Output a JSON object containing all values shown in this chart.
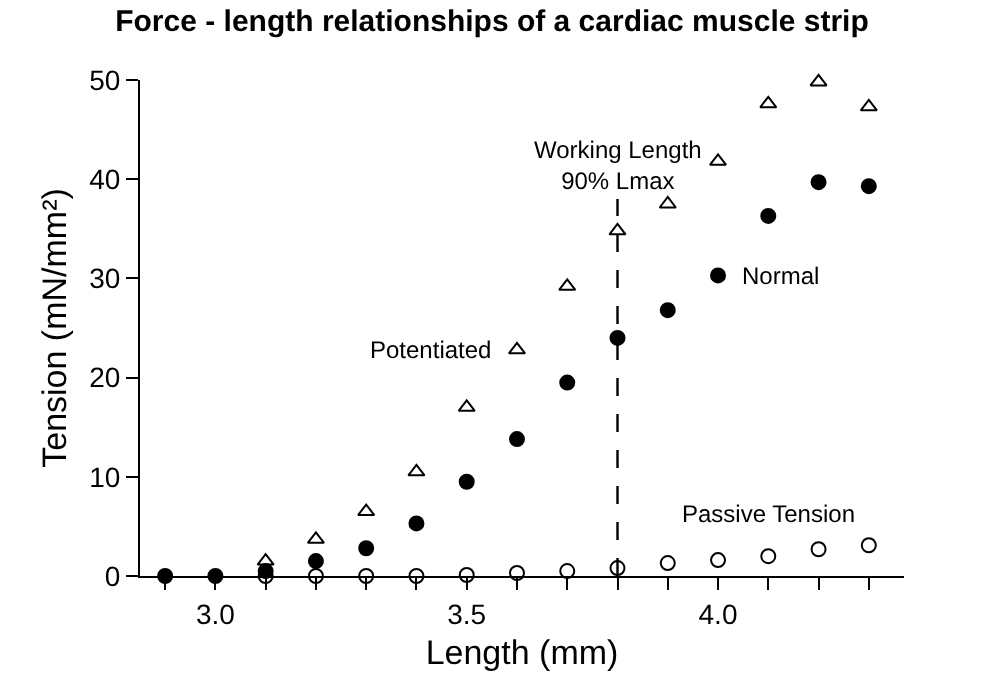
{
  "chart_data": {
    "type": "scatter",
    "title": "Force - length relationships of a cardiac muscle strip",
    "xlabel": "Length (mm)",
    "ylabel": "Tension (mN/mm²)",
    "x": [
      2.9,
      3.0,
      3.1,
      3.2,
      3.3,
      3.4,
      3.5,
      3.6,
      3.7,
      3.8,
      3.9,
      4.0,
      4.1,
      4.2,
      4.3
    ],
    "series": [
      {
        "name": "Normal",
        "color": "#000000",
        "marker": "circle",
        "values": [
          0,
          0,
          0.5,
          1.5,
          2.8,
          5.3,
          9.5,
          13.8,
          19.5,
          24,
          26.8,
          30.3,
          36.3,
          39.7,
          39.3
        ]
      },
      {
        "name": "Potentiated",
        "color": "#000000",
        "marker": "triangle",
        "values": [
          null,
          null,
          1.5,
          3.7,
          6.5,
          10.5,
          17,
          22.8,
          29.2,
          34.8,
          37.5,
          41.8,
          47.6,
          49.8,
          47.3
        ]
      },
      {
        "name": "Passive Tension",
        "color": "#000000",
        "marker": "open circle",
        "values": [
          null,
          null,
          0,
          0,
          0,
          0,
          0.1,
          0.3,
          0.5,
          0.8,
          1.3,
          1.6,
          2,
          2.7,
          3.1
        ]
      }
    ],
    "xlim": [
      2.85,
      4.37
    ],
    "xticks": [
      {
        "value": 3,
        "label": "3.0"
      },
      3.5,
      {
        "value": 4,
        "label": "4.0"
      }
    ],
    "ylim": [
      0,
      50
    ],
    "yticks": [
      0,
      10,
      20,
      30,
      40,
      50
    ],
    "ref_lines": [
      {
        "axis": "x",
        "value": 3.8,
        "label": "Working Length\n90% Lmax",
        "line_style": "dashed",
        "color": "#000000"
      }
    ],
    "grid": false,
    "legend": false
  }
}
